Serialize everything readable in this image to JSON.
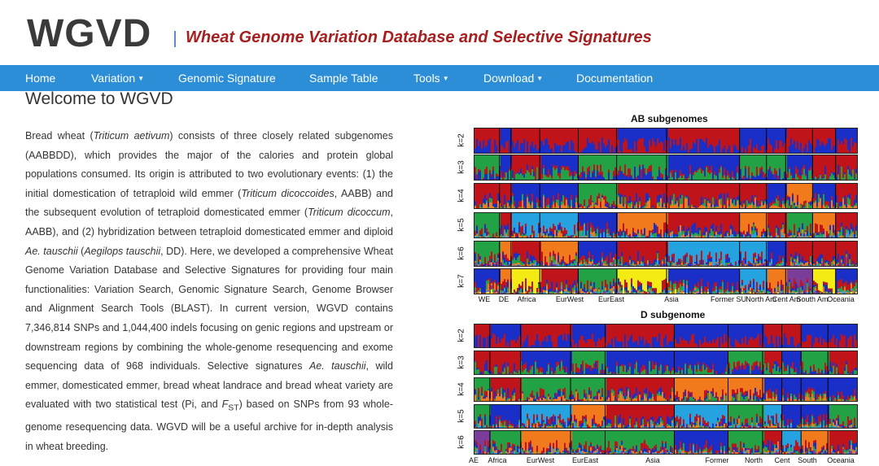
{
  "header": {
    "logo": "WGVD",
    "subtitle": "Wheat Genome Variation Database and Selective Signatures"
  },
  "nav": {
    "items": [
      {
        "label": "Home",
        "dropdown": false
      },
      {
        "label": "Variation",
        "dropdown": true
      },
      {
        "label": "Genomic Signature",
        "dropdown": false
      },
      {
        "label": "Sample Table",
        "dropdown": false
      },
      {
        "label": "Tools",
        "dropdown": true
      },
      {
        "label": "Download",
        "dropdown": true
      },
      {
        "label": "Documentation",
        "dropdown": false
      }
    ]
  },
  "main": {
    "heading": "Welcome to WGVD"
  },
  "figure": {
    "ab_title": "AB subgenomes",
    "d_title": "D subgenome",
    "ab_k_labels": [
      "k=2",
      "k=3",
      "k=4",
      "k=5",
      "k=6",
      "k=7"
    ],
    "d_k_labels": [
      "k=2",
      "k=3",
      "k=4",
      "k=5",
      "k=6"
    ],
    "ab_regions": [
      "WE",
      "DE",
      "Africa",
      "EurWest",
      "EurEast",
      "Asia",
      "Former SU",
      "North Am",
      "Cent Am",
      "South Am",
      "Oceania"
    ],
    "d_regions": [
      "AE",
      "Africa",
      "EurWest",
      "EurEast",
      "Asia",
      "Former",
      "North",
      "Cent",
      "South",
      "Oceania"
    ],
    "colors": {
      "red": "#c0141a",
      "blue": "#1a2ec8",
      "green": "#22a245",
      "orange": "#f07a1c",
      "cyan": "#25a3e0",
      "purple": "#7a3d9a",
      "yellow": "#f4ea14",
      "brown": "#8b4a2a"
    }
  }
}
